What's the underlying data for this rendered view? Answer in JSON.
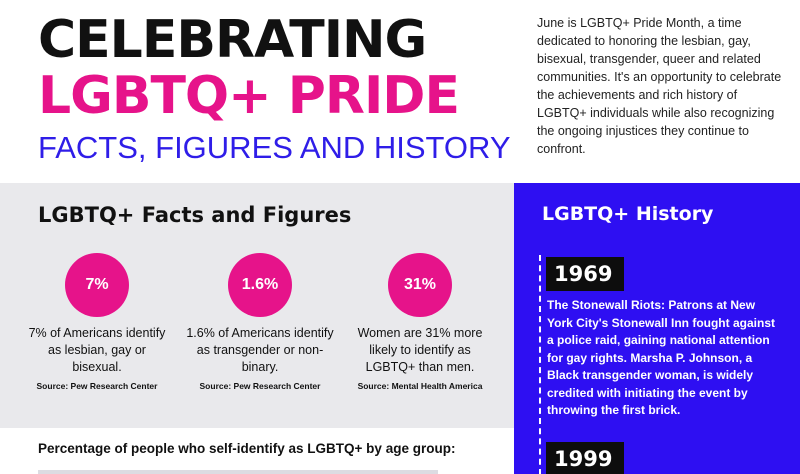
{
  "header": {
    "title_line1": "CELEBRATING",
    "title_line2": "LGBTQ+ PRIDE",
    "subtitle": "FACTS, FIGURES AND HISTORY",
    "intro": "June is LGBTQ+ Pride Month, a time dedicated to honoring the lesbian, gay, bisexual, transgender, queer and related communities. It's an opportunity to celebrate the achievements and rich history of LGBTQ+ individuals while also recognizing the ongoing injustices they continue to confront."
  },
  "facts": {
    "title": "LGBTQ+ Facts and Figures",
    "items": [
      {
        "value": "7%",
        "text": "7% of Americans identify as lesbian, gay or bisexual.",
        "source": "Source: Pew Research Center"
      },
      {
        "value": "1.6%",
        "text": "1.6% of Americans identify as transgender or non-binary.",
        "source": "Source: Pew Research Center"
      },
      {
        "value": "31%",
        "text": "Women are 31% more likely to identify as LGBTQ+ than men.",
        "source": "Source: Mental Health America"
      }
    ]
  },
  "age_section": {
    "title": "Percentage of people who self-identify as LGBTQ+ by age group:"
  },
  "history": {
    "title": "LGBTQ+ History",
    "events": [
      {
        "year": "1969",
        "text": "The Stonewall Riots: Patrons at New York City's Stonewall Inn fought against a police raid, gaining national attention for gay rights. Marsha P. Johnson, a Black transgender woman, is widely credited with initiating the event by throwing the first brick."
      },
      {
        "year": "1999",
        "text": ""
      }
    ]
  },
  "colors": {
    "pink": "#e6138a",
    "blue": "#2f1de8",
    "history_bg": "#2e0ff2",
    "facts_bg": "#e9e9ec"
  }
}
